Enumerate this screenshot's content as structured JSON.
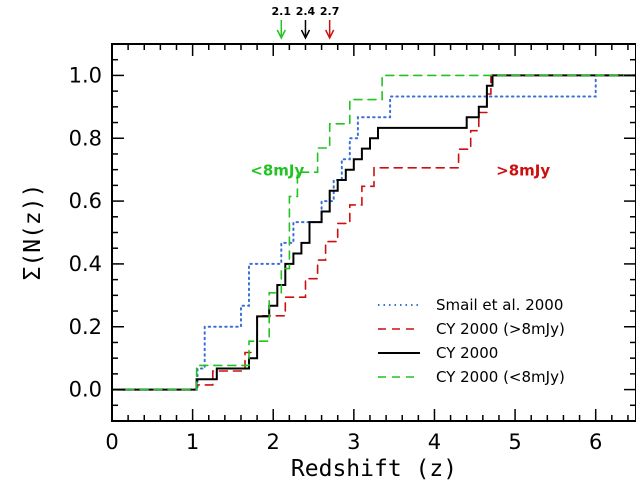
{
  "chart_data": {
    "type": "line",
    "title": "",
    "xlabel": "Redshift (z)",
    "ylabel": "Σ(N(z))",
    "xlim": [
      0,
      6.5
    ],
    "ylim": [
      -0.1,
      1.1
    ],
    "xticks": [
      0,
      1,
      2,
      3,
      4,
      5,
      6
    ],
    "yticks": [
      0.0,
      0.2,
      0.4,
      0.6,
      0.8,
      1.0
    ],
    "xtick_labels": [
      "0",
      "1",
      "2",
      "3",
      "4",
      "5",
      "6"
    ],
    "ytick_labels": [
      "0.0",
      "0.2",
      "0.4",
      "0.6",
      "0.8",
      "1.0"
    ],
    "grid": false,
    "legend_position": "bottom-right",
    "series": [
      {
        "name": "Smail et al. 2000",
        "color": "#3a6fd8",
        "dash": "dotted",
        "points": [
          [
            0,
            0
          ],
          [
            1.06,
            0
          ],
          [
            1.06,
            0.067
          ],
          [
            1.15,
            0.067
          ],
          [
            1.15,
            0.2
          ],
          [
            1.6,
            0.2
          ],
          [
            1.6,
            0.267
          ],
          [
            1.7,
            0.267
          ],
          [
            1.7,
            0.4
          ],
          [
            2.1,
            0.4
          ],
          [
            2.1,
            0.467
          ],
          [
            2.25,
            0.467
          ],
          [
            2.25,
            0.533
          ],
          [
            2.6,
            0.533
          ],
          [
            2.6,
            0.6
          ],
          [
            2.75,
            0.6
          ],
          [
            2.75,
            0.667
          ],
          [
            2.85,
            0.667
          ],
          [
            2.85,
            0.733
          ],
          [
            2.95,
            0.733
          ],
          [
            2.95,
            0.8
          ],
          [
            3.05,
            0.8
          ],
          [
            3.05,
            0.867
          ],
          [
            3.45,
            0.867
          ],
          [
            3.45,
            0.933
          ],
          [
            6.0,
            0.933
          ],
          [
            6.0,
            1.0
          ],
          [
            6.5,
            1.0
          ]
        ]
      },
      {
        "name": "CY 2000 (>8mJy)",
        "color": "#cc1010",
        "dash": "dashed",
        "points": [
          [
            0,
            0
          ],
          [
            1.05,
            0
          ],
          [
            1.05,
            0.015
          ],
          [
            1.25,
            0.015
          ],
          [
            1.25,
            0.059
          ],
          [
            1.65,
            0.059
          ],
          [
            1.65,
            0.118
          ],
          [
            1.8,
            0.118
          ],
          [
            1.8,
            0.235
          ],
          [
            2.15,
            0.235
          ],
          [
            2.15,
            0.294
          ],
          [
            2.4,
            0.294
          ],
          [
            2.4,
            0.353
          ],
          [
            2.55,
            0.353
          ],
          [
            2.55,
            0.412
          ],
          [
            2.65,
            0.412
          ],
          [
            2.65,
            0.471
          ],
          [
            2.8,
            0.471
          ],
          [
            2.8,
            0.529
          ],
          [
            2.95,
            0.529
          ],
          [
            2.95,
            0.588
          ],
          [
            3.1,
            0.588
          ],
          [
            3.1,
            0.647
          ],
          [
            3.25,
            0.647
          ],
          [
            3.25,
            0.706
          ],
          [
            4.3,
            0.706
          ],
          [
            4.3,
            0.765
          ],
          [
            4.45,
            0.765
          ],
          [
            4.45,
            0.824
          ],
          [
            4.55,
            0.824
          ],
          [
            4.55,
            0.882
          ],
          [
            4.65,
            0.882
          ],
          [
            4.65,
            0.941
          ],
          [
            4.7,
            0.941
          ],
          [
            4.7,
            1.0
          ],
          [
            6.5,
            1.0
          ]
        ]
      },
      {
        "name": "CY 2000",
        "color": "#000000",
        "dash": "solid",
        "points": [
          [
            0,
            0
          ],
          [
            1.05,
            0
          ],
          [
            1.05,
            0.033
          ],
          [
            1.3,
            0.033
          ],
          [
            1.3,
            0.067
          ],
          [
            1.7,
            0.067
          ],
          [
            1.7,
            0.1
          ],
          [
            1.8,
            0.1
          ],
          [
            1.8,
            0.233
          ],
          [
            1.95,
            0.233
          ],
          [
            1.95,
            0.267
          ],
          [
            2.05,
            0.267
          ],
          [
            2.05,
            0.333
          ],
          [
            2.15,
            0.333
          ],
          [
            2.15,
            0.4
          ],
          [
            2.25,
            0.4
          ],
          [
            2.25,
            0.433
          ],
          [
            2.35,
            0.433
          ],
          [
            2.35,
            0.467
          ],
          [
            2.45,
            0.467
          ],
          [
            2.45,
            0.533
          ],
          [
            2.6,
            0.533
          ],
          [
            2.6,
            0.567
          ],
          [
            2.7,
            0.567
          ],
          [
            2.7,
            0.633
          ],
          [
            2.8,
            0.633
          ],
          [
            2.8,
            0.667
          ],
          [
            2.9,
            0.667
          ],
          [
            2.9,
            0.7
          ],
          [
            3.0,
            0.7
          ],
          [
            3.0,
            0.733
          ],
          [
            3.1,
            0.733
          ],
          [
            3.1,
            0.767
          ],
          [
            3.2,
            0.767
          ],
          [
            3.2,
            0.8
          ],
          [
            3.3,
            0.8
          ],
          [
            3.3,
            0.833
          ],
          [
            4.4,
            0.833
          ],
          [
            4.4,
            0.867
          ],
          [
            4.55,
            0.867
          ],
          [
            4.55,
            0.9
          ],
          [
            4.65,
            0.9
          ],
          [
            4.65,
            0.967
          ],
          [
            4.72,
            0.967
          ],
          [
            4.72,
            1.0
          ],
          [
            6.5,
            1.0
          ]
        ]
      },
      {
        "name": "CY 2000 (<8mJy)",
        "color": "#22c322",
        "dash": "dashed",
        "points": [
          [
            0,
            0
          ],
          [
            1.05,
            0
          ],
          [
            1.05,
            0.077
          ],
          [
            1.7,
            0.077
          ],
          [
            1.7,
            0.154
          ],
          [
            1.95,
            0.154
          ],
          [
            1.95,
            0.308
          ],
          [
            2.1,
            0.308
          ],
          [
            2.1,
            0.385
          ],
          [
            2.2,
            0.385
          ],
          [
            2.2,
            0.615
          ],
          [
            2.3,
            0.615
          ],
          [
            2.3,
            0.692
          ],
          [
            2.55,
            0.692
          ],
          [
            2.55,
            0.769
          ],
          [
            2.7,
            0.769
          ],
          [
            2.7,
            0.846
          ],
          [
            2.95,
            0.846
          ],
          [
            2.95,
            0.923
          ],
          [
            3.35,
            0.923
          ],
          [
            3.35,
            1.0
          ],
          [
            6.5,
            1.0
          ]
        ]
      }
    ],
    "annotations": [
      {
        "text": "<8mJy",
        "color": "#22c322",
        "x": 2.05,
        "y": 0.7
      },
      {
        "text": ">8mJy",
        "color": "#cc1010",
        "x": 5.1,
        "y": 0.7
      }
    ],
    "top_markers": [
      {
        "label": "2.1",
        "x": 2.1,
        "color": "#22c322"
      },
      {
        "label": "2.4",
        "x": 2.4,
        "color": "#000000"
      },
      {
        "label": "2.7",
        "x": 2.7,
        "color": "#cc1010"
      }
    ]
  }
}
